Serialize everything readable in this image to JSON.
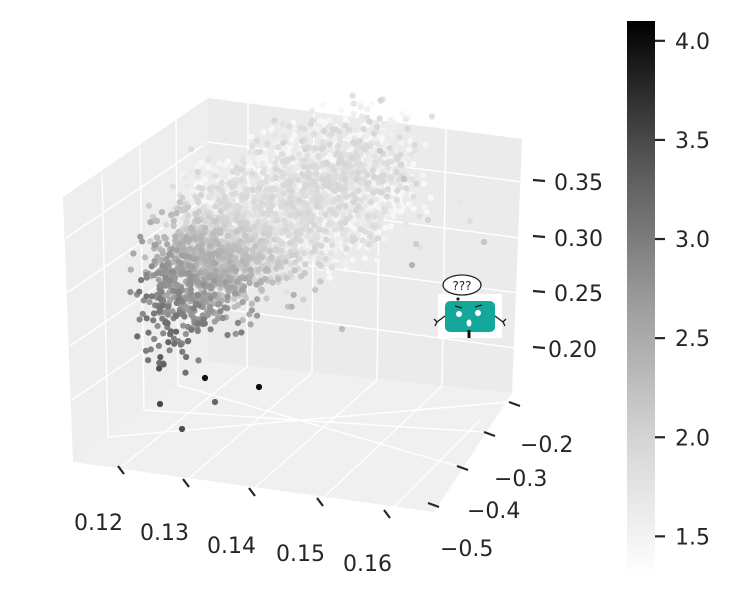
{
  "chart_data": {
    "type": "scatter",
    "title": "",
    "xlabel": "",
    "ylabel": "",
    "zlabel": "",
    "x_ticks": [
      "0.12",
      "0.13",
      "0.14",
      "0.15",
      "0.16"
    ],
    "y_ticks": [
      "−0.2",
      "−0.3",
      "−0.4",
      "−0.5"
    ],
    "z_ticks": [
      "0.35",
      "0.30",
      "0.25",
      "0.20"
    ],
    "xlim": [
      0.115,
      0.17
    ],
    "ylim": [
      -0.55,
      -0.15
    ],
    "zlim": [
      0.17,
      0.39
    ],
    "grid": true,
    "colormap": "Greys",
    "colorbar": {
      "ticks": [
        "1.5",
        "2.0",
        "2.5",
        "3.0",
        "3.5",
        "4.0"
      ],
      "range": [
        1.3,
        4.1
      ],
      "placement": "right"
    },
    "point_cloud": {
      "description_of_distribution": "dense curved cloud",
      "count": 3600,
      "color_value_range": [
        1.3,
        4.1
      ]
    },
    "colors": {
      "pane": "#f0f0f0",
      "grid": "#ffffff",
      "text": "#262626",
      "badge_body": "#14a89a"
    },
    "icons": {
      "confused_mascot": "confused-mascot-icon"
    },
    "mascot": {
      "thought_text": "???"
    }
  }
}
